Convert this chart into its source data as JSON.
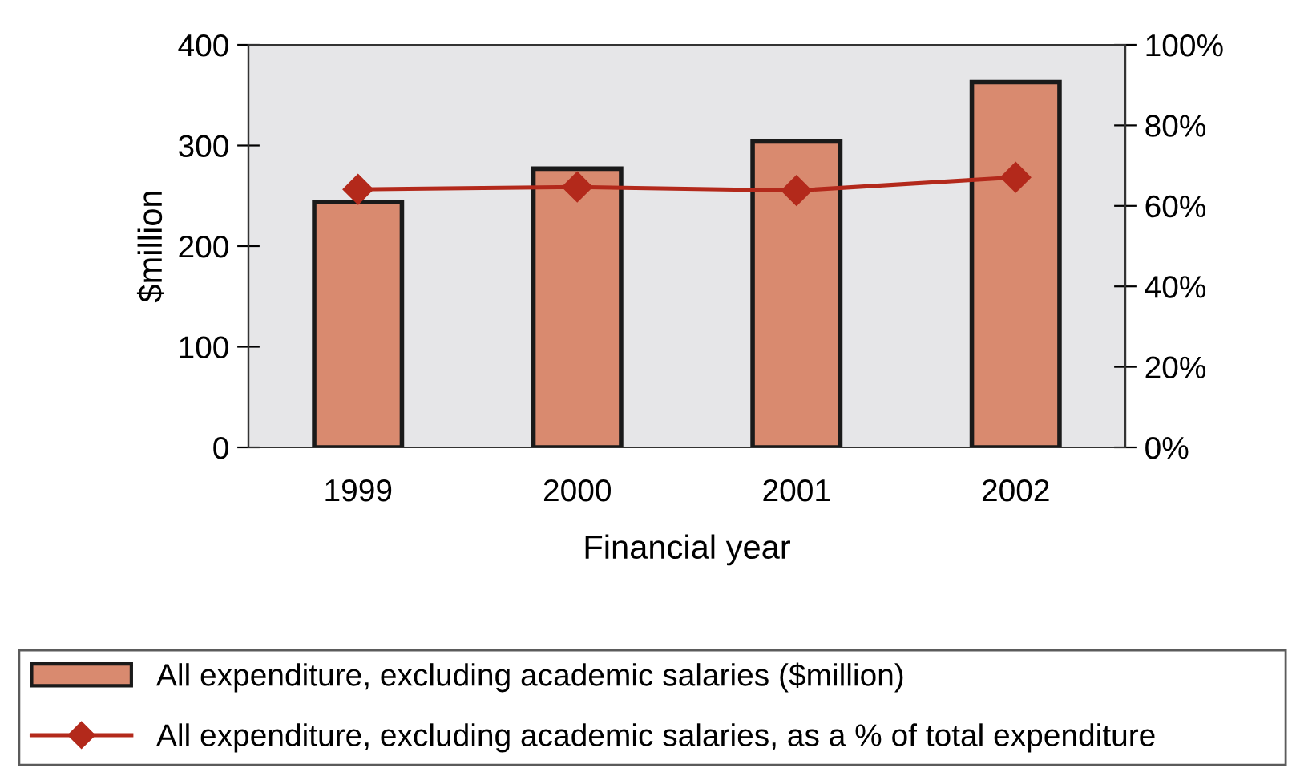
{
  "chart_data": {
    "type": "bar",
    "xlabel": "Financial year",
    "ylabel": "$million",
    "categories": [
      "1999",
      "2000",
      "2001",
      "2002"
    ],
    "series": [
      {
        "name": "All expenditure, excluding academic salaries ($million)",
        "color": "#d98a6f",
        "values": [
          244,
          277,
          304,
          363
        ]
      },
      {
        "name": "All expenditure, excluding academic salaries, as a % of total expenditure",
        "type": "line",
        "axis": "y2",
        "color": "#b3291b",
        "marker": "diamond",
        "values": [
          64.1,
          64.7,
          63.8,
          67.1
        ]
      }
    ],
    "ylim": [
      0,
      400
    ],
    "yticks": [
      0,
      100,
      200,
      300,
      400
    ],
    "y2lim": [
      0,
      100
    ],
    "y2ticks": [
      {
        "value": 0,
        "label": "0%"
      },
      {
        "value": 20,
        "label": "20%"
      },
      {
        "value": 40,
        "label": "40%"
      },
      {
        "value": 60,
        "label": "60%"
      },
      {
        "value": 80,
        "label": "80%"
      },
      {
        "value": 100,
        "label": "100%"
      }
    ],
    "grid": false,
    "legend": "bottom"
  }
}
